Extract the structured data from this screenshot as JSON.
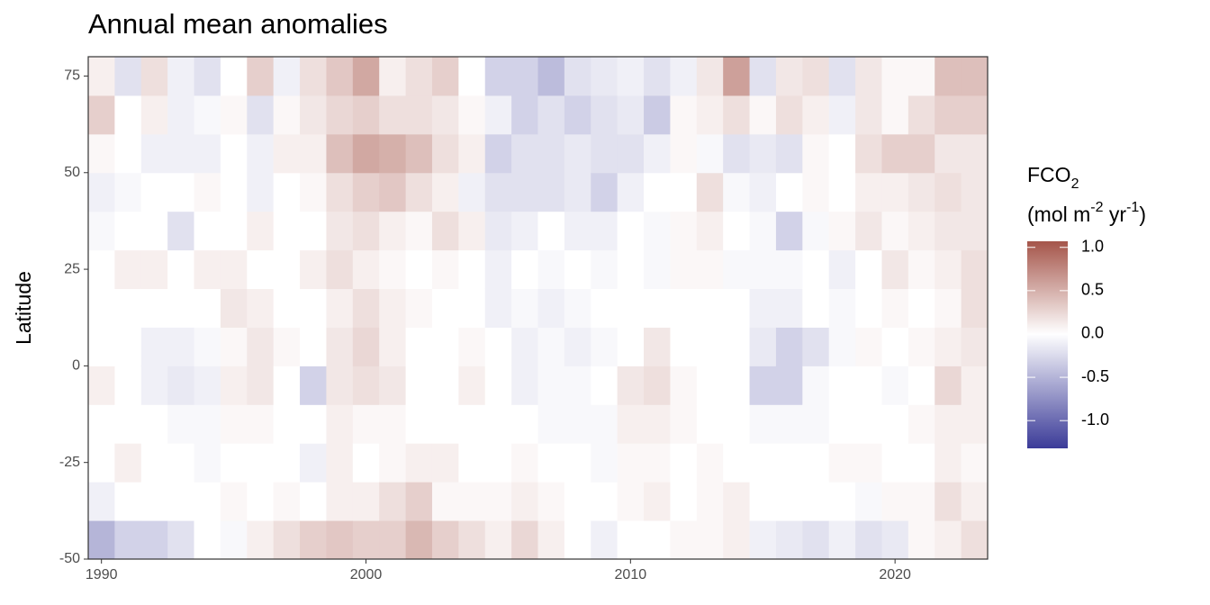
{
  "chart_data": {
    "type": "heatmap",
    "title": "Annual mean anomalies",
    "y_label": "Latitude",
    "legend_title": {
      "line1": "FCO",
      "line1_sub": "2",
      "line2": [
        "(mol m",
        "-2",
        " yr",
        "-1",
        ")"
      ]
    },
    "x": [
      1990,
      1991,
      1992,
      1993,
      1994,
      1995,
      1996,
      1997,
      1998,
      1999,
      2000,
      2001,
      2002,
      2003,
      2004,
      2005,
      2006,
      2007,
      2008,
      2009,
      2010,
      2011,
      2012,
      2013,
      2014,
      2015,
      2016,
      2017,
      2018,
      2019,
      2020,
      2021,
      2022,
      2023
    ],
    "ybins": [
      -50,
      -40,
      -30,
      -20,
      -10,
      0,
      10,
      20,
      30,
      40,
      50,
      60,
      70,
      80
    ],
    "values": [
      [
        -0.5,
        -0.1,
        0,
        0,
        0.1,
        0,
        0,
        0,
        -0.05,
        -0.1,
        0.05,
        0.3,
        0.1
      ],
      [
        -0.3,
        0,
        0.1,
        0,
        0,
        0,
        0,
        0.1,
        0,
        -0.05,
        0,
        0,
        -0.2
      ],
      [
        -0.3,
        0,
        0,
        0,
        -0.1,
        -0.1,
        0,
        0.1,
        0,
        0,
        -0.1,
        0.1,
        0.2
      ],
      [
        -0.2,
        0,
        0,
        -0.05,
        -0.15,
        -0.1,
        0,
        0,
        -0.2,
        0,
        -0.1,
        -0.1,
        -0.1
      ],
      [
        0,
        0,
        -0.05,
        -0.05,
        -0.1,
        -0.05,
        0,
        0.1,
        0,
        0.05,
        -0.1,
        -0.05,
        -0.2
      ],
      [
        -0.05,
        0.05,
        0,
        0.05,
        0.1,
        0.05,
        0.15,
        0.1,
        0,
        0,
        0,
        0.05,
        0
      ],
      [
        0.1,
        0,
        0,
        0.05,
        0.15,
        0.15,
        0.1,
        0,
        0.1,
        -0.1,
        -0.1,
        -0.2,
        0.3
      ],
      [
        0.2,
        0.05,
        0,
        0,
        0,
        0.05,
        0,
        0,
        0,
        0,
        0.1,
        0.05,
        -0.1
      ],
      [
        0.3,
        0,
        -0.1,
        0,
        -0.3,
        0,
        0,
        0.1,
        0,
        0.05,
        0.1,
        0.15,
        0.2
      ],
      [
        0.35,
        0.1,
        0.1,
        0.1,
        0.15,
        0.15,
        0.1,
        0.2,
        0.15,
        0.2,
        0.4,
        0.25,
        0.35
      ],
      [
        0.3,
        0.1,
        0,
        0.05,
        0.2,
        0.25,
        0.2,
        0.1,
        0.2,
        0.3,
        0.55,
        0.3,
        0.55
      ],
      [
        0.3,
        0.2,
        0.05,
        0.05,
        0.15,
        0.1,
        0.1,
        0.05,
        0.1,
        0.35,
        0.5,
        0.2,
        0.1
      ],
      [
        0.45,
        0.3,
        0.1,
        0,
        0,
        0,
        0.05,
        0,
        0.05,
        0.2,
        0.4,
        0.2,
        0.2
      ],
      [
        0.3,
        0.05,
        0.1,
        0,
        0,
        0,
        0,
        0.05,
        0.2,
        0.1,
        0.2,
        0.15,
        0.3
      ],
      [
        0.2,
        0.05,
        0,
        0,
        0.1,
        0.05,
        0,
        0,
        0.1,
        -0.1,
        0.1,
        0.05,
        0
      ],
      [
        0.1,
        0.05,
        0,
        0,
        0,
        0,
        -0.1,
        -0.1,
        -0.15,
        -0.2,
        -0.3,
        -0.1,
        -0.3
      ],
      [
        0.25,
        0.1,
        0.05,
        0,
        -0.1,
        -0.1,
        -0.05,
        0,
        -0.1,
        -0.2,
        -0.2,
        -0.3,
        -0.3
      ],
      [
        0.1,
        0.05,
        0,
        -0.05,
        -0.05,
        -0.05,
        -0.1,
        -0.05,
        0,
        -0.2,
        -0.2,
        -0.2,
        -0.45
      ],
      [
        0,
        0,
        0,
        -0.05,
        -0.05,
        -0.1,
        -0.05,
        0,
        -0.1,
        -0.15,
        -0.15,
        -0.3,
        -0.2
      ],
      [
        -0.1,
        0,
        -0.05,
        -0.05,
        0,
        -0.05,
        0,
        -0.05,
        -0.1,
        -0.3,
        -0.2,
        -0.2,
        -0.15
      ],
      [
        0,
        0.05,
        0.05,
        0.1,
        0.15,
        0,
        0,
        0,
        0,
        -0.1,
        -0.2,
        -0.15,
        -0.1
      ],
      [
        0,
        0.1,
        0.05,
        0.1,
        0.2,
        0.15,
        0,
        -0.05,
        -0.05,
        0,
        -0.1,
        -0.35,
        -0.2
      ],
      [
        0.05,
        0,
        0,
        0.05,
        0.05,
        0,
        0,
        0.05,
        0.05,
        0,
        0.05,
        0.05,
        -0.1
      ],
      [
        0.05,
        0.05,
        0.05,
        0,
        0,
        0,
        0,
        0.05,
        0.1,
        0.2,
        -0.05,
        0.1,
        0.15
      ],
      [
        0.1,
        0.1,
        0,
        0,
        0,
        0,
        0,
        -0.05,
        0,
        -0.05,
        -0.2,
        0.2,
        0.6
      ],
      [
        -0.1,
        0,
        0,
        -0.05,
        -0.3,
        -0.15,
        -0.1,
        -0.05,
        -0.05,
        -0.1,
        -0.15,
        0.05,
        -0.2
      ],
      [
        -0.15,
        0,
        0,
        -0.05,
        -0.3,
        -0.3,
        -0.1,
        -0.05,
        -0.3,
        0,
        -0.2,
        0.2,
        0.15
      ],
      [
        -0.2,
        0,
        0,
        -0.05,
        -0.05,
        -0.2,
        0,
        0,
        -0.05,
        0.05,
        0.05,
        0.1,
        0.2
      ],
      [
        -0.1,
        0,
        0.05,
        0,
        0,
        -0.05,
        -0.05,
        -0.1,
        0.05,
        0,
        0,
        -0.1,
        -0.2
      ],
      [
        -0.2,
        -0.05,
        0.05,
        0,
        0,
        0.05,
        0,
        0,
        0.15,
        0.1,
        0.2,
        0.15,
        0.15
      ],
      [
        -0.15,
        0.05,
        0,
        0,
        -0.05,
        0,
        0.05,
        0.15,
        0.05,
        0.1,
        0.3,
        0.05,
        0.05
      ],
      [
        0.05,
        0.05,
        0,
        0.05,
        0,
        0.05,
        0,
        0.05,
        0.1,
        0.15,
        0.3,
        0.2,
        0.05
      ],
      [
        0.1,
        0.2,
        0.1,
        0.1,
        0.25,
        0.1,
        0.05,
        0.1,
        0.15,
        0.2,
        0.15,
        0.3,
        0.4
      ],
      [
        0.2,
        0.1,
        0.05,
        0.1,
        0.1,
        0.15,
        0.2,
        0.2,
        0.15,
        0.15,
        0.15,
        0.3,
        0.4
      ]
    ],
    "xlim": [
      1989.5,
      2023.5
    ],
    "xticks": [
      1990,
      2000,
      2010,
      2020
    ],
    "ylim": [
      -50,
      80
    ],
    "yticks": [
      -50,
      -25,
      0,
      25,
      50,
      75
    ],
    "colors": {
      "low": "#3b3b98",
      "mid": "#ffffff",
      "high": "#a5554a"
    },
    "clim": [
      -1.32,
      1.07
    ],
    "cticks": [
      {
        "value": -1,
        "label": "-1.0"
      },
      {
        "value": -0.5,
        "label": "-0.5"
      },
      {
        "value": 0,
        "label": "0.0"
      },
      0.5,
      {
        "value": 1,
        "label": "1.0"
      }
    ]
  }
}
